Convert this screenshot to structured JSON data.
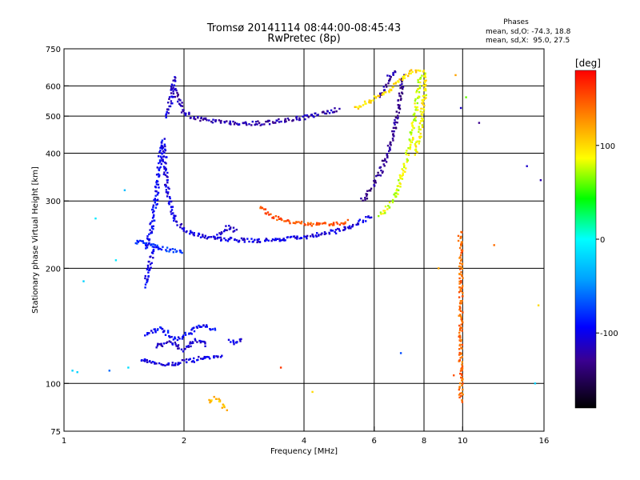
{
  "chart_data": {
    "type": "scatter",
    "title": "Tromsø 20141114 08:44:00-08:45:43",
    "subtitle": "RwPretec (8p)",
    "stats": {
      "heading": "Phases",
      "line_o": "mean, sd,O: -74.3, 18.8",
      "line_x": "mean, sd,X:  95.0, 27.5"
    },
    "xlabel": "Frequency [MHz]",
    "ylabel": "Stationary phase Virtual Height [km]",
    "x_scale": "log",
    "y_scale": "log",
    "xlim": [
      1,
      16
    ],
    "ylim": [
      75,
      750
    ],
    "x_ticks": [
      {
        "value": 1,
        "label": "1"
      },
      {
        "value": 2,
        "label": "2"
      },
      {
        "value": 4,
        "label": "4"
      },
      {
        "value": 6,
        "label": "6"
      },
      {
        "value": 8,
        "label": "8"
      },
      {
        "value": 10,
        "label": "10"
      },
      {
        "value": 16,
        "label": "16"
      }
    ],
    "x_grid": [
      2,
      4,
      6,
      8,
      10
    ],
    "y_ticks": [
      {
        "value": 75,
        "label": "75"
      },
      {
        "value": 100,
        "label": "100"
      },
      {
        "value": 200,
        "label": "200"
      },
      {
        "value": 300,
        "label": "300"
      },
      {
        "value": 400,
        "label": "400"
      },
      {
        "value": 500,
        "label": "500"
      },
      {
        "value": 600,
        "label": "600"
      },
      {
        "value": 750,
        "label": "750"
      }
    ],
    "y_grid": [
      100,
      200,
      300,
      400,
      500,
      600
    ],
    "grid": true,
    "colorbar": {
      "label": "[deg]",
      "range": [
        -180,
        180
      ],
      "ticks": [
        {
          "value": 100,
          "label": "100"
        },
        {
          "value": 0,
          "label": "0"
        },
        {
          "value": -100,
          "label": "-100"
        }
      ]
    },
    "traces": [
      {
        "phase": -120,
        "points": [
          [
            1.88,
            600
          ],
          [
            2.0,
            508
          ],
          [
            2.2,
            492
          ],
          [
            2.5,
            482
          ],
          [
            2.8,
            478
          ],
          [
            3.1,
            479
          ],
          [
            3.4,
            484
          ],
          [
            3.8,
            492
          ],
          [
            4.2,
            500
          ],
          [
            4.6,
            512
          ],
          [
            4.9,
            522
          ]
        ]
      },
      {
        "phase": -110,
        "points": [
          [
            1.8,
            500
          ],
          [
            1.85,
            545
          ],
          [
            1.88,
            600
          ],
          [
            1.9,
            640
          ]
        ]
      },
      {
        "phase": -105,
        "points": [
          [
            1.78,
            420
          ],
          [
            1.8,
            350
          ],
          [
            1.84,
            300
          ],
          [
            1.9,
            268
          ],
          [
            2.0,
            252
          ],
          [
            2.2,
            242
          ],
          [
            2.6,
            238
          ],
          [
            3.0,
            236
          ],
          [
            3.5,
            238
          ],
          [
            4.2,
            243
          ],
          [
            4.8,
            250
          ],
          [
            5.4,
            260
          ],
          [
            5.9,
            275
          ]
        ]
      },
      {
        "phase": -95,
        "points": [
          [
            1.6,
            225
          ],
          [
            1.65,
            250
          ],
          [
            1.7,
            300
          ],
          [
            1.72,
            350
          ],
          [
            1.75,
            400
          ],
          [
            1.78,
            440
          ]
        ]
      },
      {
        "phase": -80,
        "points": [
          [
            1.5,
            235
          ],
          [
            1.6,
            232
          ],
          [
            1.7,
            228
          ],
          [
            1.8,
            224
          ],
          [
            1.9,
            222
          ],
          [
            2.0,
            220
          ]
        ]
      },
      {
        "phase": -100,
        "points": [
          [
            1.6,
            180
          ],
          [
            1.63,
            200
          ],
          [
            1.66,
            215
          ],
          [
            1.7,
            230
          ]
        ]
      },
      {
        "phase": -105,
        "points": [
          [
            1.55,
            115
          ],
          [
            1.7,
            113
          ],
          [
            1.85,
            112
          ],
          [
            2.0,
            114
          ],
          [
            2.2,
            116
          ],
          [
            2.5,
            118
          ]
        ]
      },
      {
        "phase": -95,
        "points": [
          [
            1.6,
            135
          ],
          [
            1.75,
            140
          ],
          [
            1.9,
            130
          ],
          [
            2.05,
            135
          ],
          [
            2.2,
            142
          ],
          [
            2.4,
            138
          ]
        ]
      },
      {
        "phase": -110,
        "points": [
          [
            1.7,
            125
          ],
          [
            1.85,
            128
          ],
          [
            2.0,
            122
          ],
          [
            2.15,
            130
          ],
          [
            2.3,
            126
          ]
        ]
      },
      {
        "phase": 150,
        "points": [
          [
            3.1,
            290
          ],
          [
            3.3,
            275
          ],
          [
            3.6,
            266
          ],
          [
            4.0,
            262
          ],
          [
            4.4,
            260
          ],
          [
            4.8,
            262
          ],
          [
            5.2,
            265
          ]
        ]
      },
      {
        "phase": -130,
        "points": [
          [
            5.6,
            300
          ],
          [
            6.0,
            330
          ],
          [
            6.3,
            370
          ],
          [
            6.5,
            400
          ],
          [
            6.7,
            450
          ],
          [
            6.9,
            520
          ],
          [
            7.0,
            580
          ],
          [
            7.1,
            640
          ]
        ]
      },
      {
        "phase": -125,
        "points": [
          [
            6.2,
            560
          ],
          [
            6.4,
            600
          ],
          [
            6.6,
            640
          ],
          [
            6.8,
            660
          ]
        ]
      },
      {
        "phase": 80,
        "points": [
          [
            6.2,
            275
          ],
          [
            6.5,
            290
          ],
          [
            6.8,
            310
          ],
          [
            7.0,
            340
          ],
          [
            7.2,
            380
          ],
          [
            7.4,
            430
          ],
          [
            7.6,
            500
          ],
          [
            7.75,
            580
          ],
          [
            7.85,
            640
          ]
        ]
      },
      {
        "phase": 100,
        "points": [
          [
            5.4,
            525
          ],
          [
            5.8,
            545
          ],
          [
            6.2,
            565
          ],
          [
            6.6,
            590
          ],
          [
            7.0,
            620
          ],
          [
            7.4,
            650
          ],
          [
            7.8,
            660
          ],
          [
            8.1,
            650
          ]
        ]
      },
      {
        "phase": 90,
        "points": [
          [
            7.6,
            400
          ],
          [
            7.8,
            450
          ],
          [
            7.95,
            520
          ],
          [
            8.05,
            600
          ],
          [
            8.1,
            650
          ]
        ]
      },
      {
        "phase": -110,
        "points": [
          [
            2.4,
            240
          ],
          [
            2.5,
            248
          ],
          [
            2.6,
            258
          ],
          [
            2.7,
            250
          ]
        ]
      },
      {
        "phase": -100,
        "points": [
          [
            2.6,
            130
          ],
          [
            2.7,
            128
          ],
          [
            2.8,
            132
          ]
        ]
      },
      {
        "phase": 140,
        "points": [
          [
            9.9,
            90
          ],
          [
            9.9,
            110
          ],
          [
            9.9,
            130
          ],
          [
            9.9,
            180
          ],
          [
            9.9,
            200
          ],
          [
            9.9,
            220
          ],
          [
            9.85,
            240
          ],
          [
            9.9,
            250
          ]
        ]
      },
      {
        "phase": 110,
        "points": [
          [
            2.3,
            90
          ],
          [
            2.4,
            92
          ],
          [
            2.5,
            88
          ],
          [
            2.55,
            85
          ]
        ]
      }
    ],
    "scatter": [
      {
        "x": 1.05,
        "y": 108,
        "phase": -20
      },
      {
        "x": 1.08,
        "y": 107,
        "phase": -20
      },
      {
        "x": 1.2,
        "y": 270,
        "phase": -10
      },
      {
        "x": 1.35,
        "y": 210,
        "phase": -10
      },
      {
        "x": 1.42,
        "y": 320,
        "phase": -30
      },
      {
        "x": 1.3,
        "y": 108,
        "phase": -60
      },
      {
        "x": 1.45,
        "y": 110,
        "phase": -15
      },
      {
        "x": 1.12,
        "y": 185,
        "phase": -20
      },
      {
        "x": 9.6,
        "y": 640,
        "phase": 120
      },
      {
        "x": 9.9,
        "y": 525,
        "phase": -110
      },
      {
        "x": 11.0,
        "y": 480,
        "phase": -130
      },
      {
        "x": 10.2,
        "y": 560,
        "phase": 60
      },
      {
        "x": 12.0,
        "y": 230,
        "phase": 140
      },
      {
        "x": 14.5,
        "y": 370,
        "phase": -110
      },
      {
        "x": 15.7,
        "y": 340,
        "phase": -120
      },
      {
        "x": 15.5,
        "y": 160,
        "phase": 100
      },
      {
        "x": 15.2,
        "y": 100,
        "phase": -20
      },
      {
        "x": 9.5,
        "y": 105,
        "phase": 150
      },
      {
        "x": 8.7,
        "y": 200,
        "phase": 120
      },
      {
        "x": 3.5,
        "y": 110,
        "phase": 160
      },
      {
        "x": 4.2,
        "y": 95,
        "phase": 100
      },
      {
        "x": 7.0,
        "y": 120,
        "phase": -70
      }
    ]
  }
}
